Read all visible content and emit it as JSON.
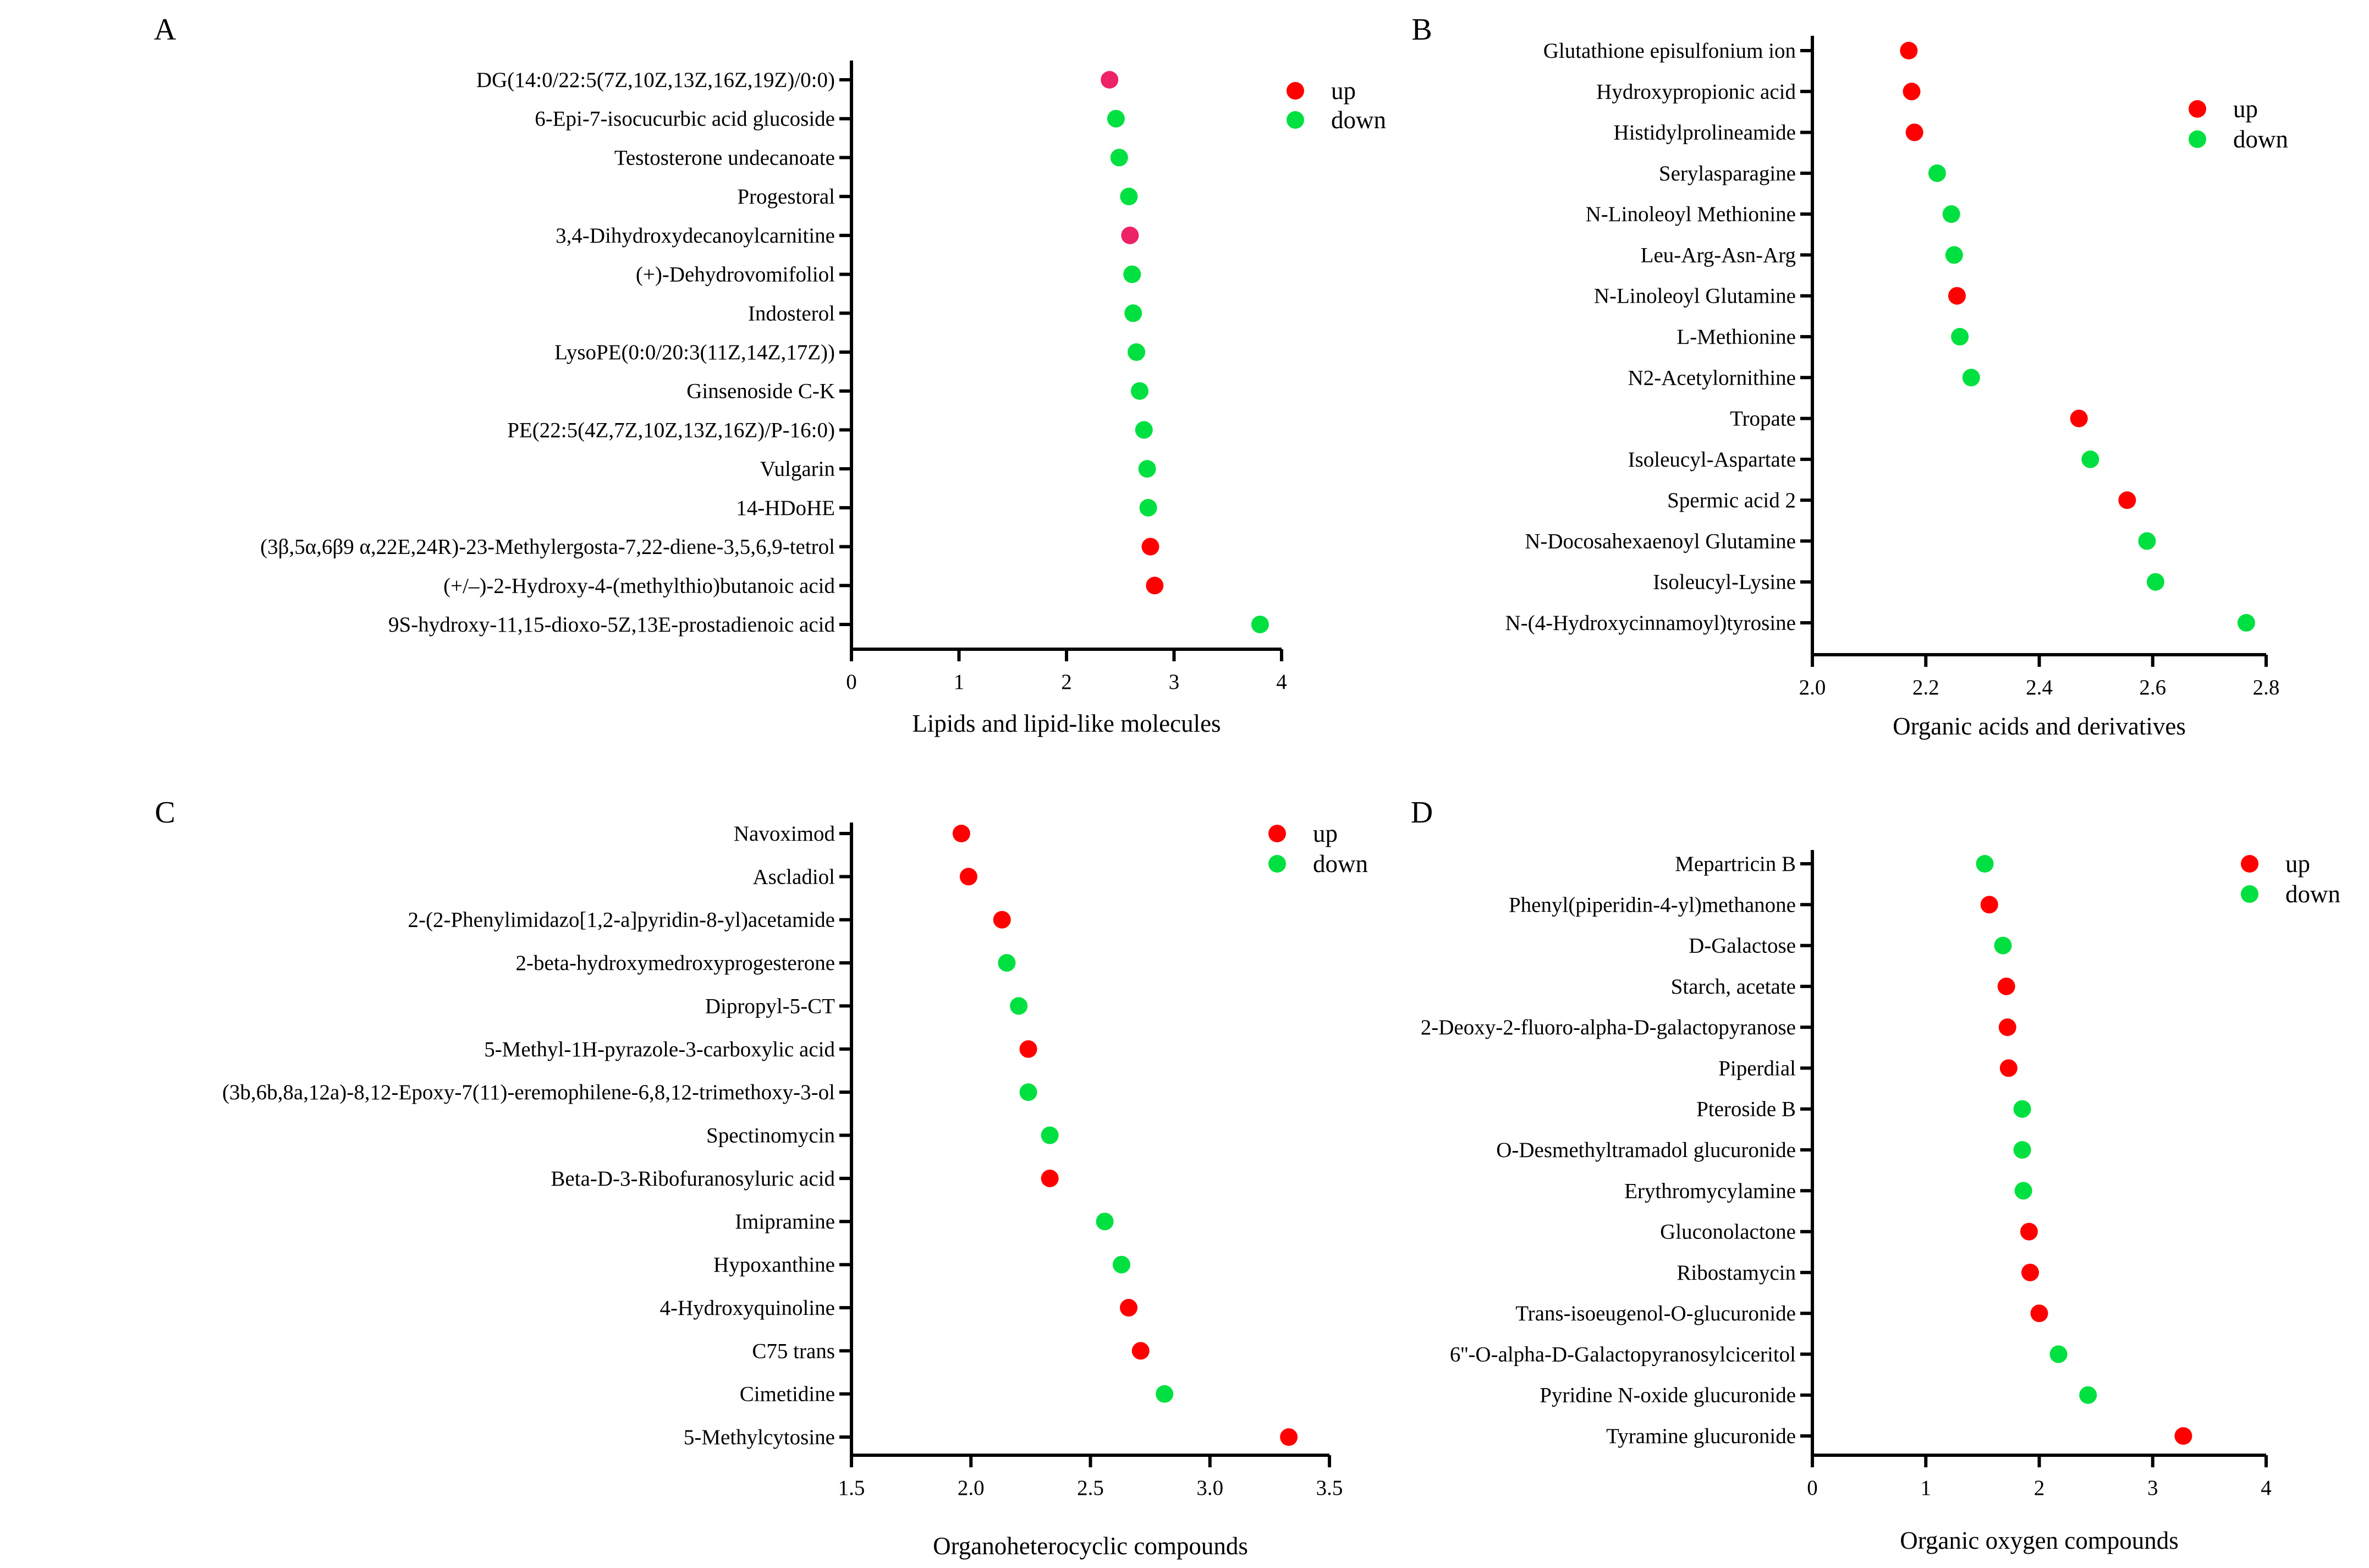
{
  "colors": {
    "up": "#ff0000",
    "down": "#00e040",
    "up_light": "#ee2266",
    "axis": "#000000"
  },
  "chart_data": [
    {
      "panel": "A",
      "type": "scatter",
      "xlabel": "Lipids and lipid-like molecules",
      "xlim": [
        0,
        4
      ],
      "xticks": [
        0,
        1,
        2,
        3,
        4
      ],
      "xtick_labels": [
        "0",
        "1",
        "2",
        "3",
        "4"
      ],
      "legend": {
        "up": "up",
        "down": "down"
      },
      "categories": [
        "DG(14:0/22:5(7Z,10Z,13Z,16Z,19Z)/0:0)",
        "6-Epi-7-isocucurbic acid glucoside",
        "Testosterone undecanoate",
        "Progestoral",
        "3,4-Dihydroxydecanoylcarnitine",
        "(+)-Dehydrovomifoliol",
        "Indosterol",
        "LysoPE(0:0/20:3(11Z,14Z,17Z))",
        "Ginsenoside C-K",
        "PE(22:5(4Z,7Z,10Z,13Z,16Z)/P-16:0)",
        "Vulgarin",
        "14-HDoHE",
        "(3β,5α,6β9 α,22E,24R)-23-Methylergosta-7,22-diene-3,5,6,9-tetrol",
        "(+/–)-2-Hydroxy-4-(methylthio)butanoic acid",
        "9S-hydroxy-11,15-dioxo-5Z,13E-prostadienoic acid"
      ],
      "values": [
        2.4,
        2.46,
        2.49,
        2.58,
        2.59,
        2.61,
        2.62,
        2.65,
        2.68,
        2.72,
        2.75,
        2.76,
        2.78,
        2.82,
        3.8
      ],
      "direction": [
        "up",
        "down",
        "down",
        "down",
        "up",
        "down",
        "down",
        "down",
        "down",
        "down",
        "down",
        "down",
        "up",
        "up",
        "down"
      ]
    },
    {
      "panel": "B",
      "type": "scatter",
      "xlabel": "Organic acids and derivatives",
      "xlim": [
        2.0,
        2.8
      ],
      "xticks": [
        2.0,
        2.2,
        2.4,
        2.6,
        2.8
      ],
      "xtick_labels": [
        "2.0",
        "2.2",
        "2.4",
        "2.6",
        "2.8"
      ],
      "legend": {
        "up": "up",
        "down": "down"
      },
      "categories": [
        "Glutathione episulfonium ion",
        "Hydroxypropionic acid",
        "Histidylprolineamide",
        "Serylasparagine",
        "N-Linoleoyl Methionine",
        "Leu-Arg-Asn-Arg",
        "N-Linoleoyl Glutamine",
        "L-Methionine",
        "N2-Acetylornithine",
        "Tropate",
        "Isoleucyl-Aspartate",
        "Spermic acid 2",
        "N-Docosahexaenoyl Glutamine",
        "Isoleucyl-Lysine",
        "N-(4-Hydroxycinnamoyl)tyrosine"
      ],
      "values": [
        2.17,
        2.175,
        2.18,
        2.22,
        2.245,
        2.25,
        2.255,
        2.26,
        2.28,
        2.47,
        2.49,
        2.555,
        2.59,
        2.605,
        2.765
      ],
      "direction": [
        "up",
        "up",
        "up",
        "down",
        "down",
        "down",
        "up",
        "down",
        "down",
        "up",
        "down",
        "up",
        "down",
        "down",
        "down"
      ]
    },
    {
      "panel": "C",
      "type": "scatter",
      "xlabel": "Organoheterocyclic compounds",
      "xlim": [
        1.5,
        3.5
      ],
      "xticks": [
        1.5,
        2.0,
        2.5,
        3.0,
        3.5
      ],
      "xtick_labels": [
        "1.5",
        "2.0",
        "2.5",
        "3.0",
        "3.5"
      ],
      "legend": {
        "up": "up",
        "down": "down"
      },
      "categories": [
        "Navoximod",
        "Ascladiol",
        "2-(2-Phenylimidazo[1,2-a]pyridin-8-yl)acetamide",
        "2-beta-hydroxymedroxyprogesterone",
        "Dipropyl-5-CT",
        "5-Methyl-1H-pyrazole-3-carboxylic acid",
        "(3b,6b,8a,12a)-8,12-Epoxy-7(11)-eremophilene-6,8,12-trimethoxy-3-ol",
        "Spectinomycin",
        "Beta-D-3-Ribofuranosyluric acid",
        "Imipramine",
        "Hypoxanthine",
        "4-Hydroxyquinoline",
        "C75 trans",
        "Cimetidine",
        "5-Methylcytosine"
      ],
      "values": [
        1.96,
        1.99,
        2.13,
        2.15,
        2.2,
        2.24,
        2.24,
        2.33,
        2.33,
        2.56,
        2.63,
        2.66,
        2.71,
        2.81,
        3.33
      ],
      "direction": [
        "up",
        "up",
        "up",
        "down",
        "down",
        "up",
        "down",
        "down",
        "up",
        "down",
        "down",
        "up",
        "up",
        "down",
        "up"
      ]
    },
    {
      "panel": "D",
      "type": "scatter",
      "xlabel": "Organic oxygen compounds",
      "xlim": [
        0,
        4
      ],
      "xticks": [
        0,
        1,
        2,
        3,
        4
      ],
      "xtick_labels": [
        "0",
        "1",
        "2",
        "3",
        "4"
      ],
      "legend": {
        "up": "up",
        "down": "down"
      },
      "categories": [
        "Mepartricin B",
        "Phenyl(piperidin-4-yl)methanone",
        "D-Galactose",
        "Starch, acetate",
        "2-Deoxy-2-fluoro-alpha-D-galactopyranose",
        "Piperdial",
        "Pteroside B",
        "O-Desmethyltramadol glucuronide",
        "Erythromycylamine",
        "Gluconolactone",
        "Ribostamycin",
        "Trans-isoeugenol-O-glucuronide",
        "6''-O-alpha-D-Galactopyranosylciceritol",
        "Pyridine N-oxide glucuronide",
        "Tyramine glucuronide"
      ],
      "values": [
        1.52,
        1.56,
        1.68,
        1.71,
        1.72,
        1.73,
        1.85,
        1.85,
        1.86,
        1.91,
        1.92,
        2.0,
        2.17,
        2.43,
        3.27
      ],
      "direction": [
        "down",
        "up",
        "down",
        "up",
        "up",
        "up",
        "down",
        "down",
        "down",
        "up",
        "up",
        "up",
        "down",
        "down",
        "up"
      ]
    }
  ]
}
